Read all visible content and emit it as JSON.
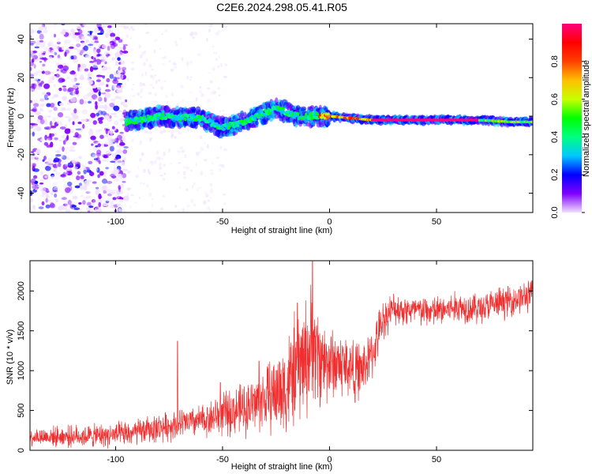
{
  "title": "C2E6.2024.298.05.41.R05",
  "colors": {
    "snr_line": "#f03030",
    "frame": "#000000",
    "background": "#ffffff"
  },
  "chart_data": [
    {
      "type": "heatmap",
      "name": "spectrogram",
      "xlabel": "Height of straight line (km)",
      "ylabel": "Frequency (Hz)",
      "xlim": [
        -140,
        95
      ],
      "ylim": [
        -50,
        48
      ],
      "xticks": [
        -100,
        -50,
        0,
        50
      ],
      "yticks": [
        -40,
        -20,
        0,
        20,
        40
      ],
      "description_series": [
        {
          "name": "noise_region",
          "x_range": [
            -140,
            -95
          ],
          "y_range": [
            -50,
            48
          ]
        },
        {
          "name": "sparse_noise",
          "x_range": [
            -95,
            -48
          ],
          "y_range": [
            -50,
            48
          ]
        },
        {
          "name": "signal_trace",
          "x": [
            -95,
            -80,
            -60,
            -50,
            -40,
            -25,
            -15,
            0,
            20,
            50,
            70,
            85,
            95
          ],
          "y": [
            -3,
            0,
            -1,
            -6,
            -3,
            4,
            0,
            0,
            -2,
            -2,
            -2,
            -3,
            -3
          ]
        }
      ],
      "colorbar": {
        "label": "Normalized spectral amplitude",
        "range": [
          0,
          1
        ],
        "ticks": [
          0.0,
          0.2,
          0.4,
          0.6,
          0.8
        ],
        "tick_labels": [
          "0.0",
          "0.2",
          "0.4",
          "0.6",
          "0.8"
        ],
        "stops": [
          "#f0e0ff",
          "#8000ff",
          "#0000ff",
          "#00c8ff",
          "#00ff80",
          "#00ff00",
          "#c8ff00",
          "#ffc000",
          "#ff4000",
          "#ff0000",
          "#ff0080"
        ]
      }
    },
    {
      "type": "line",
      "name": "snr",
      "xlabel": "Height of straight line (km)",
      "ylabel": "SNR (10 * v/v)",
      "xlim": [
        -140,
        95
      ],
      "ylim": [
        0,
        2380
      ],
      "xticks": [
        -100,
        -50,
        0,
        50
      ],
      "yticks": [
        0,
        500,
        1000,
        1500,
        2000
      ],
      "trend": {
        "x": [
          -140,
          -110,
          -95,
          -80,
          -70,
          -60,
          -50,
          -40,
          -30,
          -20,
          -15,
          -10,
          -8,
          -5,
          0,
          5,
          10,
          15,
          20,
          25,
          30,
          40,
          50,
          60,
          70,
          80,
          95
        ],
        "y": [
          170,
          180,
          200,
          280,
          330,
          370,
          450,
          520,
          650,
          800,
          1050,
          1200,
          1350,
          1150,
          1100,
          1080,
          1050,
          1000,
          1200,
          1650,
          1780,
          1750,
          1740,
          1800,
          1780,
          1850,
          1950
        ]
      },
      "noise_amplitude": {
        "x": [
          -140,
          -60,
          -30,
          -20,
          -10,
          0,
          20,
          30,
          95
        ],
        "y": [
          90,
          160,
          320,
          520,
          620,
          380,
          250,
          160,
          160
        ]
      },
      "spikes": [
        {
          "x": -71,
          "y": 1370
        },
        {
          "x": -51,
          "y": 850
        },
        {
          "x": -33,
          "y": 1120
        },
        {
          "x": -8,
          "y": 2370
        },
        {
          "x": -15,
          "y": 1850
        },
        {
          "x": 12,
          "y": 600
        }
      ]
    }
  ],
  "panels": {
    "top": {
      "xlabel": "Height of straight line (km)",
      "ylabel": "Frequency (Hz)",
      "xtick_labels": [
        "-100",
        "-50",
        "0",
        "50"
      ],
      "ytick_labels": [
        "-40",
        "-20",
        "0",
        "20",
        "40"
      ]
    },
    "bottom": {
      "xlabel": "Height of straight line (km)",
      "ylabel": "SNR (10 * v/v)",
      "xtick_labels": [
        "-100",
        "-50",
        "0",
        "50"
      ],
      "ytick_labels": [
        "0",
        "500",
        "1000",
        "1500",
        "2000"
      ]
    },
    "colorbar": {
      "label": "Normalized spectral amplitude",
      "tick_labels": [
        "0.0",
        "0.2",
        "0.4",
        "0.6",
        "0.8"
      ]
    }
  }
}
